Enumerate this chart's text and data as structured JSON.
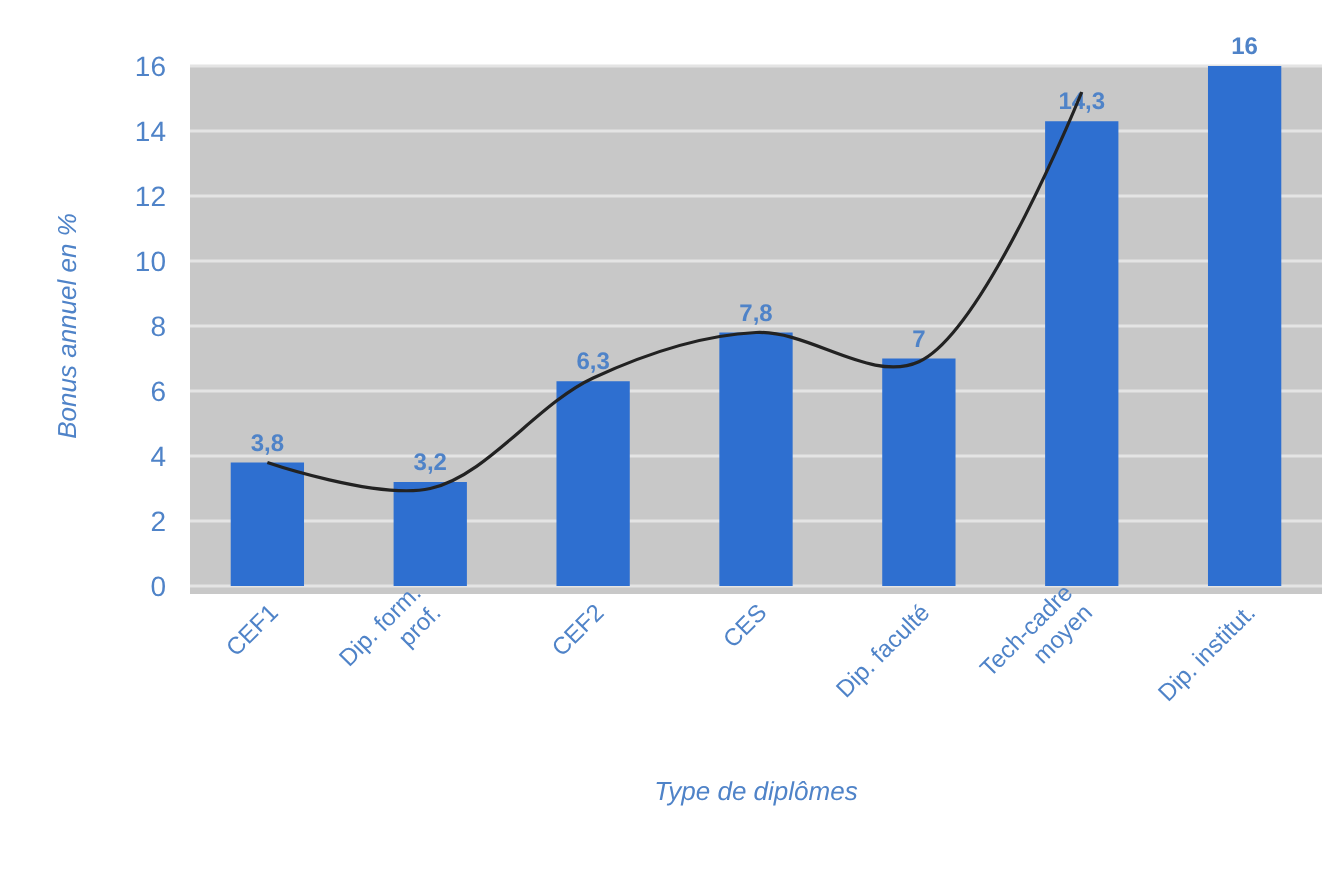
{
  "chart_data": {
    "type": "bar",
    "xlabel": "Type de diplômes",
    "ylabel": "Bonus annuel en %",
    "categories": [
      "CEF1",
      "Dip. form.\nprof.",
      "CEF2",
      "CES",
      "Dip. faculté",
      "Tech-cadre\nmoyen",
      "Dip. institut."
    ],
    "series": [
      {
        "color": "#2e6fd0",
        "values": [
          3.8,
          3.2,
          6.3,
          7.8,
          7,
          14.3,
          16
        ],
        "value_labels": [
          "3,8",
          "3,2",
          "6,3",
          "7,8",
          "7",
          "14,3",
          "16"
        ]
      },
      {
        "type": "line",
        "color": "#222222",
        "values": [
          3.8,
          3.0,
          6.4,
          7.8,
          6.9,
          15.2,
          null
        ]
      }
    ],
    "ylim": [
      0,
      16
    ],
    "yticks": [
      0,
      2,
      4,
      6,
      8,
      10,
      12,
      14,
      16
    ],
    "grid": "y"
  }
}
